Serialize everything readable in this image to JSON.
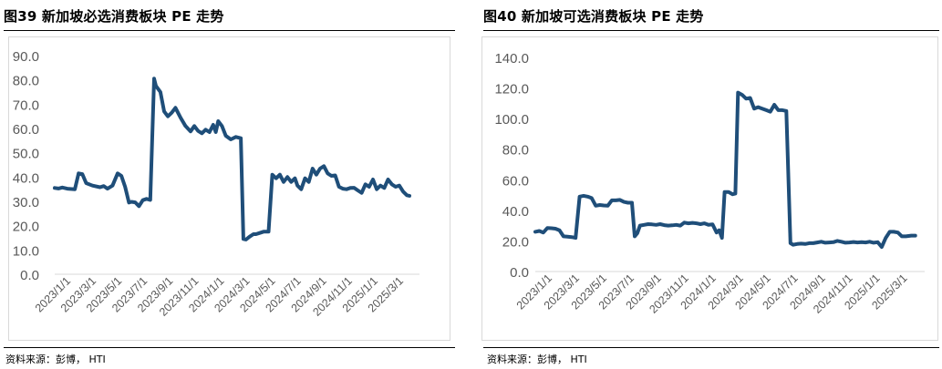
{
  "panels": [
    {
      "title": "图39 新加坡必选消费板块 PE 走势",
      "source": "资料来源：彭博， HTI"
    },
    {
      "title": "图40 新加坡可选消费板块 PE 走势",
      "source": "资料来源：彭博， HTI"
    }
  ],
  "chart_data": [
    {
      "type": "line",
      "title": "图39 新加坡必选消费板块 PE 走势",
      "line_color": "#1f4e79",
      "ylim": [
        0,
        90
      ],
      "yticks": [
        "0.0",
        "10.0",
        "20.0",
        "30.0",
        "40.0",
        "50.0",
        "60.0",
        "70.0",
        "80.0",
        "90.0"
      ],
      "xtick_labels": [
        "2023/1/1",
        "2023/3/1",
        "2023/5/1",
        "2023/7/1",
        "2023/9/1",
        "2023/11/1",
        "2024/1/1",
        "2024/3/1",
        "2024/5/1",
        "2024/7/1",
        "2024/9/1",
        "2024/11/1",
        "2025/1/1",
        "2025/3/1"
      ],
      "xlim": [
        0,
        29
      ],
      "x": [
        0,
        0.3,
        0.6,
        1.0,
        1.6,
        1.9,
        2.2,
        2.5,
        3.0,
        3.6,
        3.9,
        4.2,
        4.6,
        5.0,
        5.3,
        5.6,
        5.9,
        6.1,
        6.4,
        6.7,
        7.0,
        7.3,
        7.6,
        7.9,
        8.05,
        8.4,
        8.7,
        9.0,
        9.3,
        9.6,
        10.0,
        10.4,
        10.8,
        11.1,
        11.4,
        11.7,
        12.0,
        12.3,
        12.6,
        12.8,
        13.0,
        13.3,
        13.6,
        14.0,
        14.4,
        14.8,
        15.0,
        15.2,
        15.5,
        15.8,
        16.0,
        16.3,
        16.6,
        17.0,
        17.3,
        17.6,
        17.9,
        18.2,
        18.5,
        18.8,
        19.1,
        19.3,
        19.6,
        19.9,
        20.2,
        20.5,
        20.8,
        21.1,
        21.4,
        21.7,
        22.0,
        22.3,
        22.6,
        22.9,
        23.2,
        23.5,
        23.8,
        24.1,
        24.4,
        24.7,
        25.0,
        25.3,
        25.6,
        25.9,
        26.2,
        26.5,
        26.8,
        27.1,
        27.4,
        27.7,
        28.0,
        28.2
      ],
      "values": [
        35.5,
        35.3,
        35.7,
        35.2,
        35.0,
        41.5,
        41.2,
        37.5,
        36.5,
        35.8,
        36.3,
        35.2,
        36.5,
        41.5,
        40.5,
        36.0,
        29.5,
        29.8,
        29.6,
        28.0,
        30.5,
        31.0,
        30.6,
        80.5,
        77.5,
        75.0,
        67.0,
        65.0,
        66.5,
        68.5,
        64.5,
        61.0,
        58.8,
        61.0,
        59.0,
        58.0,
        59.5,
        58.5,
        61.5,
        58.5,
        63.0,
        61.0,
        57.0,
        55.5,
        56.5,
        56.0,
        14.5,
        14.3,
        15.5,
        16.5,
        16.5,
        17.0,
        17.5,
        17.5,
        41.0,
        39.5,
        41.0,
        38.0,
        40.0,
        38.0,
        39.5,
        36.5,
        35.0,
        39.5,
        38.0,
        43.5,
        41.0,
        43.5,
        44.5,
        41.5,
        40.5,
        40.7,
        36.0,
        35.2,
        35.0,
        35.5,
        35.6,
        34.5,
        33.5,
        37.0,
        36.0,
        39.0,
        35.0,
        36.5,
        35.5,
        39.0,
        37.0,
        36.0,
        36.5,
        34.0,
        32.5,
        32.3
      ]
    },
    {
      "type": "line",
      "title": "图40 新加坡可选消费板块 PE 走势",
      "line_color": "#1f4e79",
      "ylim": [
        0,
        140
      ],
      "yticks": [
        "0.0",
        "20.0",
        "40.0",
        "60.0",
        "80.0",
        "100.0",
        "120.0",
        "140.0"
      ],
      "xtick_labels": [
        "2023/1/1",
        "2023/3/1",
        "2023/5/1",
        "2023/7/1",
        "2023/9/1",
        "2023/11/1",
        "2024/1/1",
        "2024/3/1",
        "2024/5/1",
        "2024/7/1",
        "2024/9/1",
        "2024/11/1",
        "2025/1/1",
        "2025/3/1"
      ],
      "xlim": [
        0,
        29
      ],
      "x": [
        0,
        0.3,
        0.6,
        0.9,
        1.2,
        1.5,
        1.8,
        2.1,
        2.4,
        2.7,
        3.0,
        3.3,
        3.6,
        3.9,
        4.2,
        4.5,
        4.8,
        5.1,
        5.4,
        5.7,
        6.0,
        6.3,
        6.6,
        6.9,
        7.2,
        7.4,
        7.6,
        7.8,
        8.1,
        8.4,
        8.7,
        9.0,
        9.3,
        9.6,
        9.9,
        10.2,
        10.5,
        10.8,
        11.1,
        11.4,
        11.7,
        12.0,
        12.3,
        12.6,
        12.9,
        13.2,
        13.5,
        13.7,
        13.9,
        14.1,
        14.4,
        14.7,
        14.9,
        15.1,
        15.4,
        15.7,
        16.0,
        16.3,
        16.6,
        16.9,
        17.2,
        17.5,
        17.8,
        18.1,
        18.4,
        18.7,
        19.0,
        19.2,
        19.5,
        19.8,
        20.1,
        20.4,
        20.7,
        21.0,
        21.3,
        21.6,
        21.9,
        22.2,
        22.5,
        22.8,
        23.1,
        23.4,
        23.7,
        24.0,
        24.3,
        24.6,
        24.9,
        25.2,
        25.5,
        25.8,
        26.1,
        26.4,
        26.7,
        27.0,
        27.3,
        27.6,
        28.0,
        28.3
      ],
      "values": [
        26.0,
        26.5,
        25.5,
        28.5,
        28.3,
        28.0,
        27.0,
        23.0,
        22.8,
        22.5,
        22.0,
        49.0,
        49.5,
        49.0,
        48.0,
        43.0,
        43.5,
        43.2,
        43.0,
        46.5,
        46.5,
        46.8,
        45.5,
        45.0,
        45.0,
        23.0,
        25.0,
        30.0,
        30.5,
        31.0,
        30.8,
        30.5,
        31.0,
        30.3,
        30.0,
        30.2,
        30.5,
        30.0,
        32.0,
        31.5,
        31.8,
        31.5,
        31.0,
        31.5,
        30.5,
        30.8,
        25.5,
        27.0,
        22.0,
        52.0,
        52.0,
        50.5,
        51.0,
        117.0,
        115.5,
        113.0,
        113.5,
        106.5,
        107.5,
        106.5,
        105.5,
        104.5,
        109.0,
        105.5,
        105.5,
        105.0,
        18.5,
        17.5,
        18.0,
        18.2,
        18.0,
        18.5,
        18.5,
        19.0,
        19.5,
        18.8,
        19.0,
        19.2,
        20.0,
        19.5,
        18.8,
        19.0,
        19.3,
        19.0,
        19.2,
        19.0,
        19.5,
        18.8,
        19.2,
        16.0,
        22.0,
        26.0,
        26.0,
        25.5,
        23.0,
        23.0,
        23.5,
        23.5
      ]
    }
  ]
}
